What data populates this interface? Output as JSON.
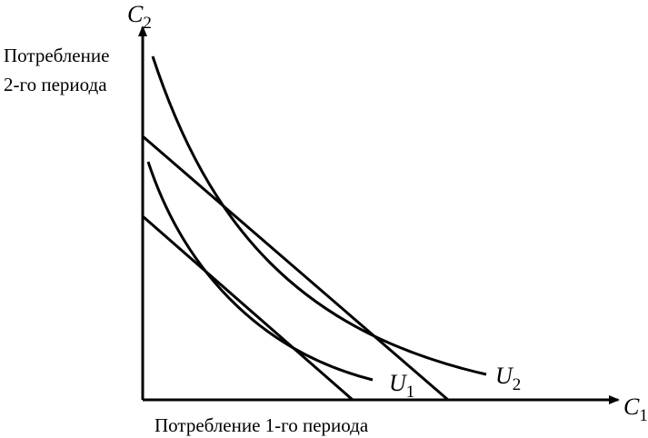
{
  "axes": {
    "y": {
      "symbol": "C",
      "subscript": "2",
      "label_lines": [
        "Потребление",
        "2-го периода"
      ]
    },
    "x": {
      "symbol": "C",
      "subscript": "1",
      "label": "Потребление 1-го периода"
    }
  },
  "curves": [
    {
      "symbol": "U",
      "subscript": "1"
    },
    {
      "symbol": "U",
      "subscript": "2"
    }
  ]
}
